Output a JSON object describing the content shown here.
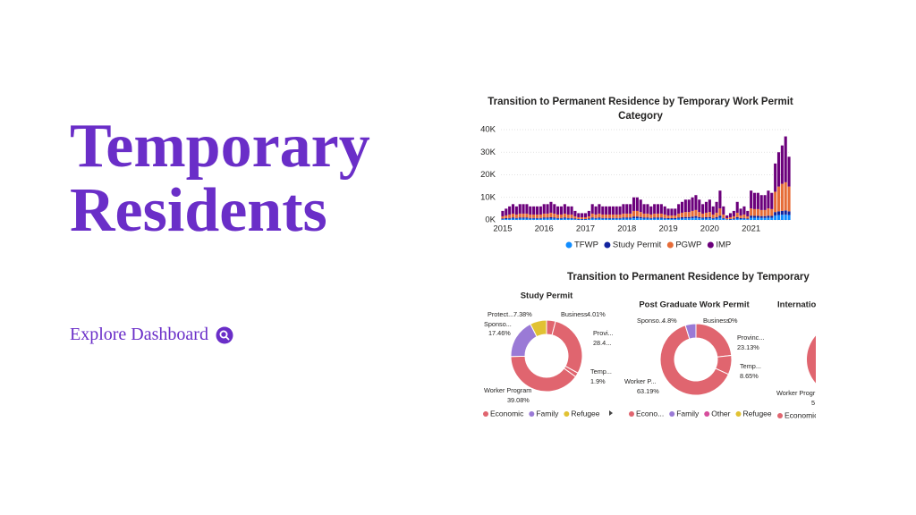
{
  "header": {
    "title": "Temporary Residents"
  },
  "link": {
    "label": "Explore Dashboard"
  },
  "section_title": "Transition to Permanent Residence by Temporary",
  "chart_data": [
    {
      "type": "stacked_bar",
      "title": "Transition to Permanent Residence by Temporary Work Permit Category",
      "categories": [
        "2015",
        null,
        null,
        null,
        null,
        null,
        null,
        null,
        null,
        null,
        null,
        null,
        "2016",
        null,
        null,
        null,
        null,
        null,
        null,
        null,
        null,
        null,
        null,
        null,
        "2017",
        null,
        null,
        null,
        null,
        null,
        null,
        null,
        null,
        null,
        null,
        null,
        "2018",
        null,
        null,
        null,
        null,
        null,
        null,
        null,
        null,
        null,
        null,
        null,
        "2019",
        null,
        null,
        null,
        null,
        null,
        null,
        null,
        null,
        null,
        null,
        null,
        "2020",
        null,
        null,
        null,
        null,
        null,
        null,
        null,
        null,
        null,
        null,
        null,
        "2021",
        null,
        null,
        null,
        null,
        null,
        null,
        null,
        null,
        null,
        null,
        null
      ],
      "series": [
        {
          "name": "TFWP",
          "color": "#118dff",
          "values": [
            300,
            400,
            500,
            600,
            500,
            600,
            600,
            600,
            500,
            500,
            500,
            500,
            600,
            600,
            600,
            600,
            500,
            500,
            600,
            500,
            500,
            300,
            200,
            200,
            200,
            300,
            600,
            500,
            600,
            500,
            500,
            500,
            500,
            500,
            500,
            600,
            600,
            600,
            800,
            800,
            700,
            600,
            600,
            500,
            600,
            600,
            600,
            500,
            400,
            400,
            400,
            600,
            600,
            700,
            700,
            800,
            900,
            700,
            600,
            600,
            700,
            500,
            600,
            1000,
            500,
            200,
            200,
            300,
            600,
            400,
            500,
            300,
            1000,
            1000,
            1000,
            900,
            900,
            1000,
            1000,
            2000,
            2200,
            2300,
            2400,
            2200
          ]
        },
        {
          "name": "Study Permit",
          "color": "#12239e",
          "values": [
            300,
            400,
            400,
            500,
            400,
            500,
            500,
            500,
            400,
            400,
            400,
            400,
            500,
            500,
            600,
            500,
            400,
            400,
            500,
            400,
            400,
            300,
            200,
            200,
            200,
            300,
            500,
            400,
            500,
            400,
            400,
            400,
            400,
            400,
            400,
            500,
            500,
            500,
            700,
            700,
            600,
            500,
            500,
            400,
            500,
            500,
            500,
            400,
            400,
            400,
            400,
            500,
            600,
            600,
            600,
            700,
            800,
            600,
            500,
            600,
            600,
            400,
            600,
            900,
            400,
            100,
            200,
            300,
            600,
            400,
            400,
            300,
            900,
            800,
            800,
            800,
            800,
            900,
            800,
            1500,
            1600,
            1700,
            1800,
            1600
          ]
        },
        {
          "name": "PGWP",
          "color": "#e66c37",
          "values": [
            1000,
            1200,
            1500,
            1700,
            1500,
            1700,
            1700,
            1700,
            1500,
            1500,
            1500,
            1500,
            1700,
            1700,
            2000,
            1700,
            1500,
            1500,
            1700,
            1500,
            1500,
            1000,
            800,
            800,
            800,
            1000,
            1700,
            1500,
            1700,
            1500,
            1500,
            1500,
            1500,
            1500,
            1500,
            1700,
            1700,
            1700,
            2500,
            2500,
            2200,
            1700,
            1700,
            1500,
            1700,
            1700,
            1700,
            1500,
            1200,
            1200,
            1200,
            1700,
            2000,
            2200,
            2200,
            2500,
            2700,
            2200,
            1700,
            2000,
            2200,
            1500,
            2000,
            3200,
            1500,
            500,
            800,
            1000,
            2000,
            1200,
            1500,
            1000,
            3200,
            3000,
            3000,
            2700,
            2700,
            3200,
            3000,
            9000,
            11000,
            12000,
            12500,
            11000
          ]
        },
        {
          "name": "IMP",
          "color": "#6b007b",
          "values": [
            2400,
            3000,
            3600,
            4200,
            3600,
            4200,
            4200,
            4200,
            3600,
            3600,
            3600,
            3600,
            4200,
            4200,
            4800,
            4200,
            3600,
            3600,
            4200,
            3600,
            3600,
            2400,
            1800,
            1800,
            1800,
            2400,
            4200,
            3600,
            4200,
            3600,
            3600,
            3600,
            3600,
            3600,
            3600,
            4200,
            4200,
            4200,
            6000,
            6000,
            5500,
            4200,
            4200,
            3600,
            4200,
            4200,
            4200,
            3600,
            3000,
            3000,
            3000,
            4200,
            4800,
            5500,
            5500,
            6000,
            6600,
            5500,
            4200,
            4800,
            5500,
            3600,
            4800,
            7900,
            3600,
            1200,
            1800,
            2400,
            4800,
            3000,
            3600,
            2400,
            7900,
            7200,
            7200,
            6600,
            6600,
            7900,
            7200,
            12500,
            15200,
            17000,
            20300,
            13200
          ]
        }
      ],
      "ylim": [
        0,
        40000
      ],
      "yticks": [
        {
          "value": 0,
          "label": "0K"
        },
        {
          "value": 10000,
          "label": "10K"
        },
        {
          "value": 20000,
          "label": "20K"
        },
        {
          "value": 30000,
          "label": "30K"
        },
        {
          "value": 40000,
          "label": "40K"
        }
      ],
      "grid": true
    },
    {
      "type": "donut",
      "title": "Study Permit",
      "categories": [
        "Business",
        "Provi...",
        "Temp...",
        "Worker Program",
        "Sponso...",
        "Protect..."
      ],
      "values": [
        4.01,
        28.4,
        1.9,
        39.08,
        17.46,
        7.38
      ],
      "value_labels": [
        "4.01%",
        "28.4...",
        "1.9%",
        "39.08%",
        "17.46%",
        "7.38%"
      ],
      "colors": [
        "#e0656f",
        "#e0656f",
        "#e0656f",
        "#e0656f",
        "#9a7ad6",
        "#e1c233"
      ],
      "legend": [
        {
          "name": "Economic",
          "color": "#e0656f"
        },
        {
          "name": "Family",
          "color": "#9a7ad6"
        },
        {
          "name": "Refugee",
          "color": "#e1c233"
        }
      ]
    },
    {
      "type": "donut",
      "title": "Post Graduate Work Permit",
      "categories": [
        "Business",
        "Provinc...",
        "Temp...",
        "Worker P...",
        "Sponso..."
      ],
      "values": [
        0,
        23.13,
        8.65,
        63.19,
        4.8
      ],
      "value_labels": [
        "0%",
        "23.13%",
        "8.65%",
        "63.19%",
        "4.8%"
      ],
      "colors": [
        "#e0656f",
        "#e0656f",
        "#e0656f",
        "#e0656f",
        "#9a7ad6"
      ],
      "legend": [
        {
          "name": "Econo...",
          "color": "#e0656f"
        },
        {
          "name": "Family",
          "color": "#9a7ad6"
        },
        {
          "name": "Other",
          "color": "#d64d9c"
        },
        {
          "name": "Refugee",
          "color": "#e1c233"
        }
      ]
    },
    {
      "type": "donut_cropped",
      "title": "Internatio",
      "labels": [
        "Worker Progr",
        "5"
      ],
      "legend": [
        {
          "name": "Economic",
          "color": "#e0656f"
        }
      ]
    }
  ]
}
